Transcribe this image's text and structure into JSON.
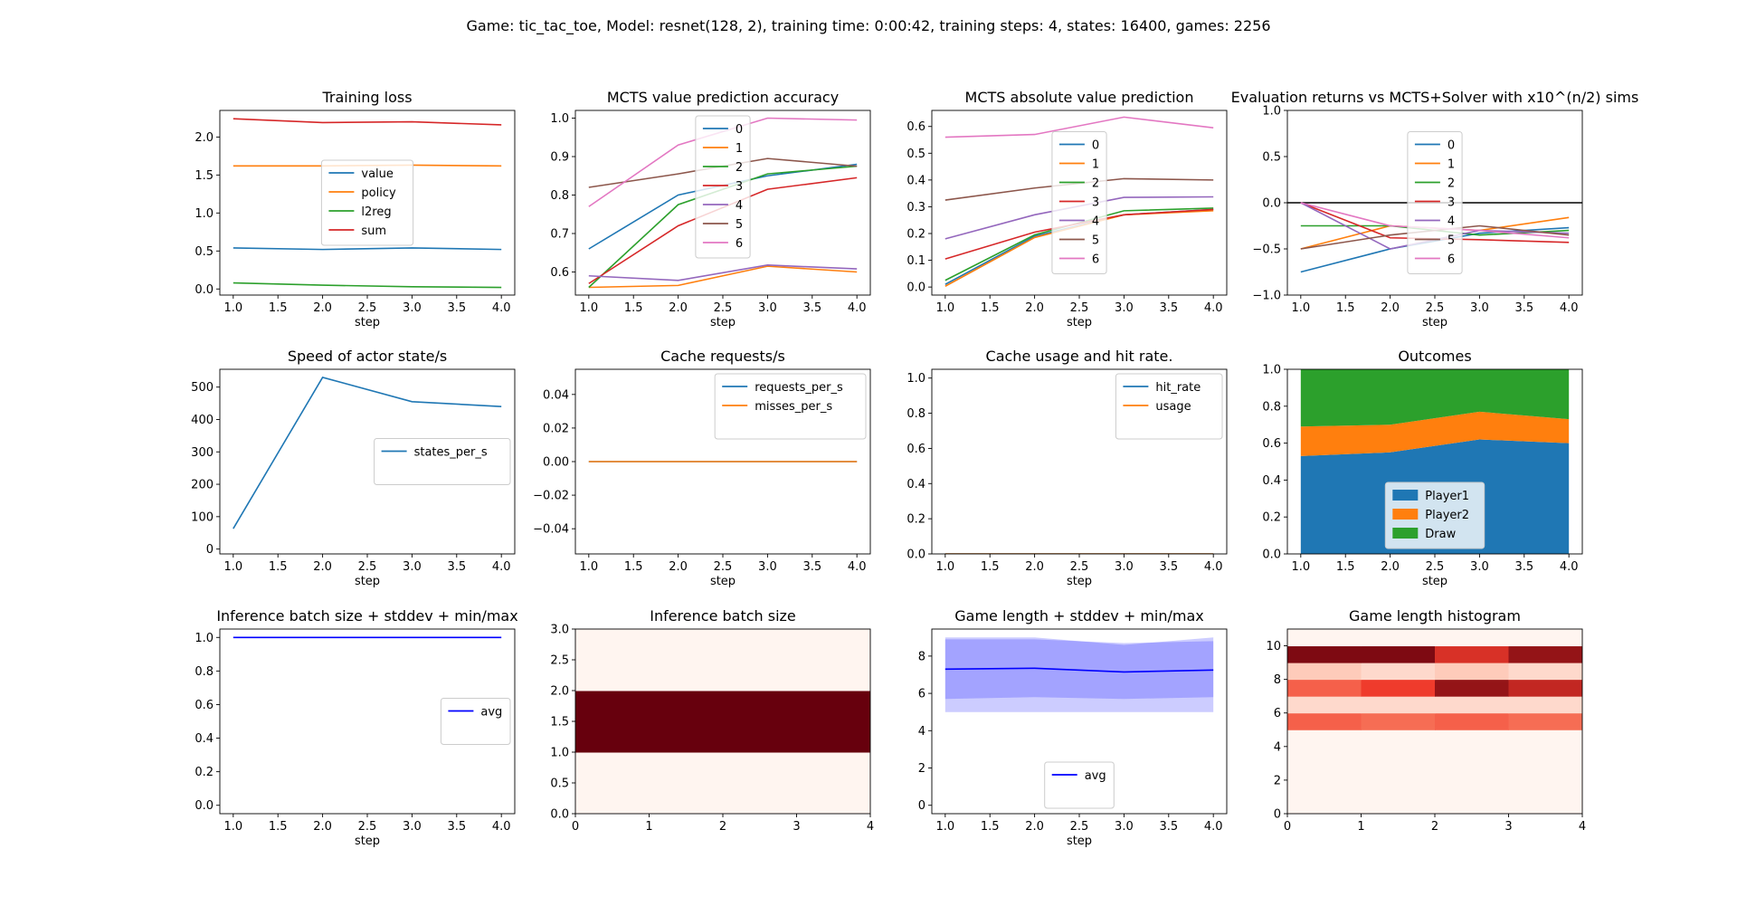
{
  "figure_title": "Game: tic_tac_toe, Model: resnet(128, 2), training time: 0:00:42, training steps: 4, states: 16400, games: 2256",
  "palette": [
    "#1f77b4",
    "#ff7f0e",
    "#2ca02c",
    "#d62728",
    "#9467bd",
    "#8c564b",
    "#e377c2"
  ],
  "chart_data": [
    {
      "type": "line",
      "title": "Training loss",
      "xlabel": "step",
      "xlim": [
        0.85,
        4.15
      ],
      "ylim": [
        -0.08,
        2.35
      ],
      "xticks": [
        "1.0",
        "1.5",
        "2.0",
        "2.5",
        "3.0",
        "3.5",
        "4.0"
      ],
      "yticks": [
        "0.0",
        "0.5",
        "1.0",
        "1.5",
        "2.0"
      ],
      "x": [
        1,
        2,
        3,
        4
      ],
      "series": [
        {
          "name": "value",
          "color": "#1f77b4",
          "values": [
            0.54,
            0.52,
            0.54,
            0.52
          ]
        },
        {
          "name": "policy",
          "color": "#ff7f0e",
          "values": [
            1.62,
            1.62,
            1.63,
            1.62
          ]
        },
        {
          "name": "l2reg",
          "color": "#2ca02c",
          "values": [
            0.08,
            0.05,
            0.03,
            0.02
          ]
        },
        {
          "name": "sum",
          "color": "#d62728",
          "values": [
            2.24,
            2.19,
            2.2,
            2.16
          ]
        }
      ],
      "legend": "center"
    },
    {
      "type": "line",
      "title": "MCTS value prediction accuracy",
      "xlabel": "step",
      "xlim": [
        0.85,
        4.15
      ],
      "ylim": [
        0.54,
        1.02
      ],
      "xticks": [
        "1.0",
        "1.5",
        "2.0",
        "2.5",
        "3.0",
        "3.5",
        "4.0"
      ],
      "yticks": [
        "0.6",
        "0.7",
        "0.8",
        "0.9",
        "1.0"
      ],
      "x": [
        1,
        2,
        3,
        4
      ],
      "series": [
        {
          "name": "0",
          "color": "#1f77b4",
          "values": [
            0.66,
            0.8,
            0.85,
            0.88
          ]
        },
        {
          "name": "1",
          "color": "#ff7f0e",
          "values": [
            0.56,
            0.565,
            0.615,
            0.6
          ]
        },
        {
          "name": "2",
          "color": "#2ca02c",
          "values": [
            0.56,
            0.775,
            0.855,
            0.875
          ]
        },
        {
          "name": "3",
          "color": "#d62728",
          "values": [
            0.57,
            0.72,
            0.815,
            0.845
          ]
        },
        {
          "name": "4",
          "color": "#9467bd",
          "values": [
            0.59,
            0.578,
            0.618,
            0.608
          ]
        },
        {
          "name": "5",
          "color": "#8c564b",
          "values": [
            0.82,
            0.855,
            0.895,
            0.875
          ]
        },
        {
          "name": "6",
          "color": "#e377c2",
          "values": [
            0.77,
            0.93,
            1.0,
            0.995
          ]
        }
      ],
      "legend": "upper center"
    },
    {
      "type": "line",
      "title": "MCTS absolute value prediction",
      "xlabel": "step",
      "xlim": [
        0.85,
        4.15
      ],
      "ylim": [
        -0.03,
        0.66
      ],
      "xticks": [
        "1.0",
        "1.5",
        "2.0",
        "2.5",
        "3.0",
        "3.5",
        "4.0"
      ],
      "yticks": [
        "0.0",
        "0.1",
        "0.2",
        "0.3",
        "0.4",
        "0.5",
        "0.6"
      ],
      "x": [
        1,
        2,
        3,
        4
      ],
      "series": [
        {
          "name": "0",
          "color": "#1f77b4",
          "values": [
            0.01,
            0.19,
            0.27,
            0.29
          ]
        },
        {
          "name": "1",
          "color": "#ff7f0e",
          "values": [
            0.003,
            0.185,
            0.27,
            0.285
          ]
        },
        {
          "name": "2",
          "color": "#2ca02c",
          "values": [
            0.025,
            0.195,
            0.285,
            0.295
          ]
        },
        {
          "name": "3",
          "color": "#d62728",
          "values": [
            0.105,
            0.205,
            0.27,
            0.29
          ]
        },
        {
          "name": "4",
          "color": "#9467bd",
          "values": [
            0.18,
            0.27,
            0.335,
            0.337
          ]
        },
        {
          "name": "5",
          "color": "#8c564b",
          "values": [
            0.325,
            0.37,
            0.405,
            0.4
          ]
        },
        {
          "name": "6",
          "color": "#e377c2",
          "values": [
            0.56,
            0.57,
            0.635,
            0.595
          ]
        }
      ],
      "legend": "center"
    },
    {
      "type": "line",
      "title": "Evaluation returns vs MCTS+Solver with x10^(n/2) sims",
      "xlabel": "step",
      "xlim": [
        0.85,
        4.15
      ],
      "ylim": [
        -1.0,
        1.0
      ],
      "xticks": [
        "1.0",
        "1.5",
        "2.0",
        "2.5",
        "3.0",
        "3.5",
        "4.0"
      ],
      "yticks": [
        "−1.0",
        "−0.5",
        "0.0",
        "0.5",
        "1.0"
      ],
      "x": [
        1,
        2,
        3,
        4
      ],
      "hline": 0,
      "series": [
        {
          "name": "0",
          "color": "#1f77b4",
          "values": [
            -0.75,
            -0.5,
            -0.33,
            -0.27
          ]
        },
        {
          "name": "1",
          "color": "#ff7f0e",
          "values": [
            -0.5,
            -0.25,
            -0.3,
            -0.16
          ]
        },
        {
          "name": "2",
          "color": "#2ca02c",
          "values": [
            -0.25,
            -0.25,
            -0.35,
            -0.3
          ]
        },
        {
          "name": "3",
          "color": "#d62728",
          "values": [
            0.0,
            -0.38,
            -0.4,
            -0.43
          ]
        },
        {
          "name": "4",
          "color": "#9467bd",
          "values": [
            0.0,
            -0.5,
            -0.3,
            -0.33
          ]
        },
        {
          "name": "5",
          "color": "#8c564b",
          "values": [
            -0.5,
            -0.35,
            -0.25,
            -0.35
          ]
        },
        {
          "name": "6",
          "color": "#e377c2",
          "values": [
            0.0,
            -0.25,
            -0.3,
            -0.38
          ]
        }
      ],
      "legend": "center"
    },
    {
      "type": "line",
      "title": "Speed of actor state/s",
      "xlabel": "step",
      "xlim": [
        0.85,
        4.15
      ],
      "ylim": [
        -15,
        555
      ],
      "xticks": [
        "1.0",
        "1.5",
        "2.0",
        "2.5",
        "3.0",
        "3.5",
        "4.0"
      ],
      "yticks": [
        "0",
        "100",
        "200",
        "300",
        "400",
        "500"
      ],
      "x": [
        1,
        2,
        3,
        4
      ],
      "series": [
        {
          "name": "states_per_s",
          "color": "#1f77b4",
          "values": [
            63,
            530,
            455,
            440
          ]
        }
      ],
      "legend": "center right"
    },
    {
      "type": "line",
      "title": "Cache requests/s",
      "xlabel": "step",
      "xlim": [
        0.85,
        4.15
      ],
      "ylim": [
        -0.055,
        0.055
      ],
      "xticks": [
        "1.0",
        "1.5",
        "2.0",
        "2.5",
        "3.0",
        "3.5",
        "4.0"
      ],
      "yticks": [
        "−0.04",
        "−0.02",
        "0.00",
        "0.02",
        "0.04"
      ],
      "x": [
        1,
        2,
        3,
        4
      ],
      "series": [
        {
          "name": "requests_per_s",
          "color": "#1f77b4",
          "values": [
            0,
            0,
            0,
            0
          ]
        },
        {
          "name": "misses_per_s",
          "color": "#ff7f0e",
          "values": [
            0,
            0,
            0,
            0
          ]
        }
      ],
      "legend": "upper right"
    },
    {
      "type": "line",
      "title": "Cache usage and hit rate.",
      "xlabel": "step",
      "xlim": [
        0.85,
        4.15
      ],
      "ylim": [
        0.0,
        1.05
      ],
      "xticks": [
        "1.0",
        "1.5",
        "2.0",
        "2.5",
        "3.0",
        "3.5",
        "4.0"
      ],
      "yticks": [
        "0.0",
        "0.2",
        "0.4",
        "0.6",
        "0.8",
        "1.0"
      ],
      "x": [
        1,
        2,
        3,
        4
      ],
      "series": [
        {
          "name": "hit_rate",
          "color": "#1f77b4",
          "values": [
            0,
            0,
            0,
            0
          ]
        },
        {
          "name": "usage",
          "color": "#ff7f0e",
          "values": [
            0,
            0,
            0,
            0
          ]
        }
      ],
      "legend": "upper right"
    },
    {
      "type": "area",
      "title": "Outcomes",
      "xlabel": "step",
      "xlim": [
        0.85,
        4.15
      ],
      "ylim": [
        0.0,
        1.0
      ],
      "xticks": [
        "1.0",
        "1.5",
        "2.0",
        "2.5",
        "3.0",
        "3.5",
        "4.0"
      ],
      "yticks": [
        "0.0",
        "0.2",
        "0.4",
        "0.6",
        "0.8",
        "1.0"
      ],
      "x": [
        1,
        2,
        3,
        4
      ],
      "series": [
        {
          "name": "Player1",
          "color": "#1f77b4",
          "values": [
            0.53,
            0.55,
            0.62,
            0.6
          ]
        },
        {
          "name": "Player2",
          "color": "#ff7f0e",
          "values": [
            0.16,
            0.15,
            0.15,
            0.13
          ]
        },
        {
          "name": "Draw",
          "color": "#2ca02c",
          "values": [
            0.31,
            0.3,
            0.23,
            0.27
          ]
        }
      ],
      "legend": "lower center"
    },
    {
      "type": "line",
      "title": "Inference batch size + stddev + min/max",
      "xlabel": "step",
      "xlim": [
        0.85,
        4.15
      ],
      "ylim": [
        -0.05,
        1.05
      ],
      "xticks": [
        "1.0",
        "1.5",
        "2.0",
        "2.5",
        "3.0",
        "3.5",
        "4.0"
      ],
      "yticks": [
        "0.0",
        "0.2",
        "0.4",
        "0.6",
        "0.8",
        "1.0"
      ],
      "x": [
        1,
        2,
        3,
        4
      ],
      "series": [
        {
          "name": "avg",
          "color": "#0000ff",
          "values": [
            1,
            1,
            1,
            1
          ]
        }
      ],
      "legend": "center right"
    },
    {
      "type": "heatmap",
      "title": "Inference batch size",
      "xlim": [
        0,
        4
      ],
      "ylim": [
        0,
        3
      ],
      "xticks": [
        "0",
        "1",
        "2",
        "3",
        "4"
      ],
      "yticks": [
        "0.0",
        "0.5",
        "1.0",
        "1.5",
        "2.0",
        "2.5",
        "3.0"
      ],
      "rows": [
        {
          "y0": 0,
          "y1": 1,
          "cells": [
            0.0,
            0.0,
            0.0,
            0.0
          ]
        },
        {
          "y0": 1,
          "y1": 2,
          "cells": [
            1.0,
            1.0,
            1.0,
            1.0
          ]
        },
        {
          "y0": 2,
          "y1": 3,
          "cells": [
            0.0,
            0.0,
            0.0,
            0.0
          ]
        }
      ]
    },
    {
      "type": "line",
      "title": "Game length + stddev + min/max",
      "xlabel": "step",
      "xlim": [
        0.85,
        4.15
      ],
      "ylim": [
        -0.45,
        9.45
      ],
      "xticks": [
        "1.0",
        "1.5",
        "2.0",
        "2.5",
        "3.0",
        "3.5",
        "4.0"
      ],
      "yticks": [
        "0",
        "2",
        "4",
        "6",
        "8"
      ],
      "x": [
        1,
        2,
        3,
        4
      ],
      "band_minmax": {
        "low": [
          5,
          5,
          5,
          5
        ],
        "high": [
          9,
          9,
          8.6,
          9
        ]
      },
      "band_std": {
        "low": [
          5.7,
          5.8,
          5.7,
          5.8
        ],
        "high": [
          8.9,
          8.9,
          8.7,
          8.8
        ]
      },
      "series": [
        {
          "name": "avg",
          "color": "#0000ff",
          "values": [
            7.3,
            7.35,
            7.15,
            7.25
          ]
        }
      ],
      "legend": "lower center"
    },
    {
      "type": "heatmap",
      "title": "Game length histogram",
      "xlim": [
        0,
        4
      ],
      "ylim": [
        0,
        11
      ],
      "xticks": [
        "0",
        "1",
        "2",
        "3",
        "4"
      ],
      "yticks": [
        "0",
        "2",
        "4",
        "6",
        "8",
        "10"
      ],
      "rows": [
        {
          "y0": 0,
          "y1": 5,
          "cells": [
            0.0,
            0.0,
            0.0,
            0.0
          ]
        },
        {
          "y0": 5,
          "y1": 6,
          "cells": [
            0.55,
            0.5,
            0.55,
            0.5
          ]
        },
        {
          "y0": 6,
          "y1": 7,
          "cells": [
            0.1,
            0.1,
            0.1,
            0.1
          ]
        },
        {
          "y0": 7,
          "y1": 8,
          "cells": [
            0.55,
            0.7,
            0.9,
            0.8
          ]
        },
        {
          "y0": 8,
          "y1": 9,
          "cells": [
            0.15,
            0.1,
            0.15,
            0.1
          ]
        },
        {
          "y0": 9,
          "y1": 10,
          "cells": [
            0.95,
            0.95,
            0.75,
            0.9
          ]
        },
        {
          "y0": 10,
          "y1": 11,
          "cells": [
            0.0,
            0.0,
            0.0,
            0.0
          ]
        }
      ]
    }
  ]
}
